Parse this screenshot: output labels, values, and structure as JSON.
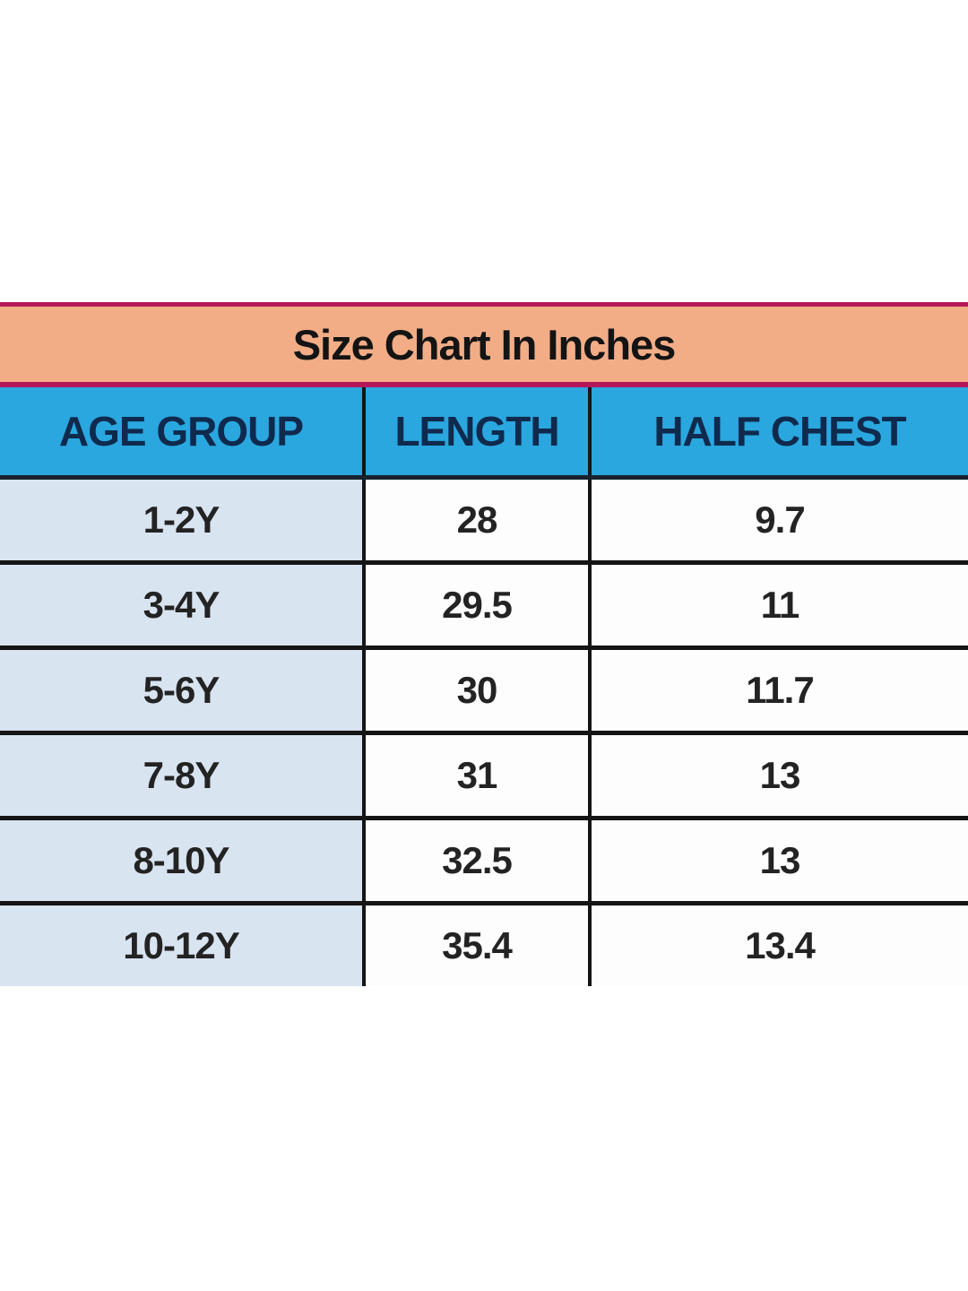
{
  "title_bar": {
    "text": "Size Chart In Inches",
    "bg_color": "#F2AD86",
    "border_color": "#B5175B"
  },
  "header": {
    "bg_color": "#2AA7DF",
    "text_color": "#0F2A4D",
    "columns": [
      "AGE GROUP",
      "LENGTH",
      "HALF CHEST"
    ]
  },
  "rows": [
    [
      "1-2Y",
      "28",
      "9.7"
    ],
    [
      "3-4Y",
      "29.5",
      "11"
    ],
    [
      "5-6Y",
      "30",
      "11.7"
    ],
    [
      "7-8Y",
      "31",
      "13"
    ],
    [
      "8-10Y",
      "32.5",
      "13"
    ],
    [
      "10-12Y",
      "35.4",
      "13.4"
    ]
  ],
  "colors": {
    "first_column_bg": "#D9E4F1",
    "data_cell_bg": "#FDFDFE",
    "grid_border": "#151515",
    "page_bg": "#FFFFFF"
  },
  "chart_data": {
    "type": "table",
    "title": "Size Chart In Inches",
    "units": "inches",
    "columns": [
      "AGE GROUP",
      "LENGTH",
      "HALF CHEST"
    ],
    "rows": [
      [
        "1-2Y",
        28,
        9.7
      ],
      [
        "3-4Y",
        29.5,
        11
      ],
      [
        "5-6Y",
        30,
        11.7
      ],
      [
        "7-8Y",
        31,
        13
      ],
      [
        "8-10Y",
        32.5,
        13
      ],
      [
        "10-12Y",
        35.4,
        13.4
      ]
    ]
  }
}
